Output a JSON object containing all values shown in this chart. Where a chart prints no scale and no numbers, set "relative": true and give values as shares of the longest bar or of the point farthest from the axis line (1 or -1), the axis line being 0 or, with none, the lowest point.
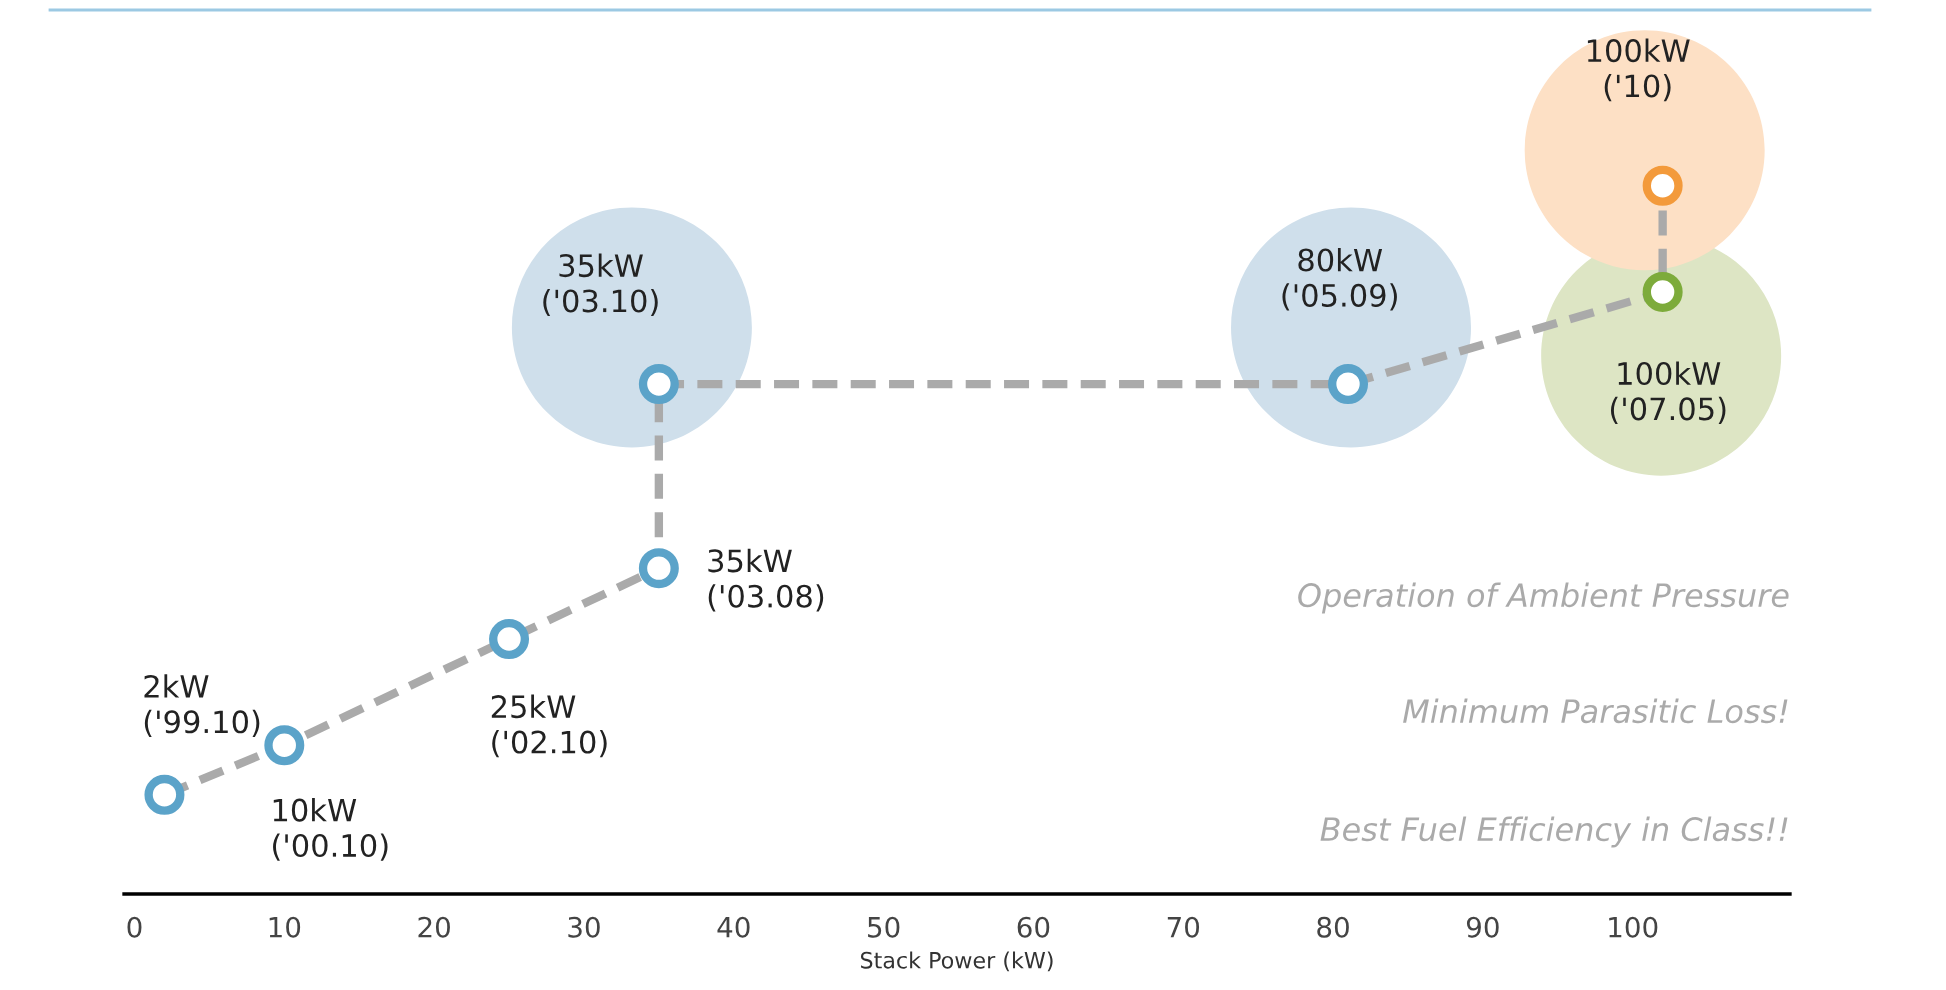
{
  "chart_data": {
    "type": "line",
    "relative": true,
    "xlabel": "Stack Power (kW)",
    "xlim": [
      -0.7,
      110.5
    ],
    "xticks": [
      0,
      10,
      20,
      30,
      40,
      50,
      60,
      70,
      80,
      90,
      100
    ],
    "grid": false,
    "marker": "circle",
    "line_style": "dashed",
    "series": [
      {
        "color": "#aaaaaa",
        "x": [
          2,
          10,
          25,
          35,
          35,
          81,
          102,
          102
        ],
        "values": [
          0.14,
          0.21,
          0.36,
          0.46,
          0.72,
          0.72,
          0.85,
          1
        ],
        "colors": [
          "#5ba3c9",
          "#5ba3c9",
          "#5ba3c9",
          "#5ba3c9",
          "#5ba3c9",
          "#5ba3c9",
          "#7dab3b",
          "#f39a3b"
        ]
      }
    ],
    "annotations": [
      {
        "text": "2kW\n('99.10)",
        "x": 2,
        "y": 0.14
      },
      {
        "text": "10kW\n('00.10)",
        "x": 10,
        "y": 0.21
      },
      {
        "text": "25kW\n('02.10)",
        "x": 25,
        "y": 0.36
      },
      {
        "text": "35kW\n('03.08)",
        "x": 35,
        "y": 0.46
      },
      {
        "text": "35kW\n('03.10)",
        "x": 35,
        "y": 0.72
      },
      {
        "text": "80kW\n('05.09)",
        "x": 81,
        "y": 0.72
      },
      {
        "text": "100kW\n('07.05)",
        "x": 102,
        "y": 0.85
      },
      {
        "text": "100kW\n('10)",
        "x": 102,
        "y": 1
      },
      "Operation of Ambient Pressure",
      "Minimum Parasitic Loss!",
      "Best Fuel Efficiency in Class!!"
    ]
  }
}
